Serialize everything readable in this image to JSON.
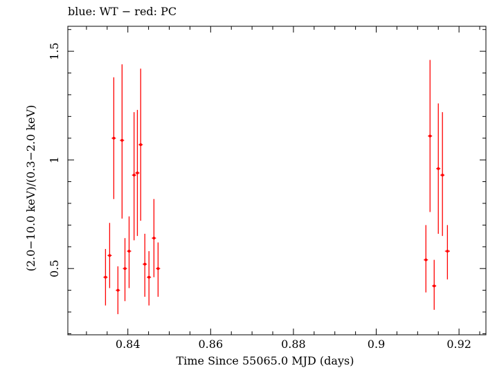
{
  "chart_data": {
    "type": "scatter",
    "title": "blue: WT − red: PC",
    "xlabel": "Time Since 55065.0 MJD (days)",
    "ylabel": "(2.0−10.0 keV)/(0.3−2.0 keV)",
    "xlim": [
      0.8255,
      0.9265
    ],
    "ylim": [
      0.195,
      1.615
    ],
    "xticks": [
      0.84,
      0.86,
      0.88,
      0.9,
      0.92
    ],
    "xtick_labels": [
      "0.84",
      "0.86",
      "0.88",
      "0.9",
      "0.92"
    ],
    "yticks": [
      0.5,
      1,
      1.5
    ],
    "ytick_labels": [
      "0.5",
      "1",
      "1.5"
    ],
    "grid": false,
    "series": [
      {
        "color": "#ff0000",
        "points": [
          {
            "x": 0.8346,
            "y": 0.46,
            "xerr": 0.0005,
            "ylo": 0.33,
            "yhi": 0.59
          },
          {
            "x": 0.8356,
            "y": 0.56,
            "xerr": 0.0005,
            "ylo": 0.41,
            "yhi": 0.71
          },
          {
            "x": 0.8366,
            "y": 1.1,
            "xerr": 0.0005,
            "ylo": 0.82,
            "yhi": 1.38
          },
          {
            "x": 0.8376,
            "y": 0.4,
            "xerr": 0.0005,
            "ylo": 0.29,
            "yhi": 0.51
          },
          {
            "x": 0.8386,
            "y": 1.09,
            "xerr": 0.0005,
            "ylo": 0.73,
            "yhi": 1.44
          },
          {
            "x": 0.8393,
            "y": 0.5,
            "xerr": 0.0005,
            "ylo": 0.35,
            "yhi": 0.64
          },
          {
            "x": 0.8403,
            "y": 0.58,
            "xerr": 0.0005,
            "ylo": 0.41,
            "yhi": 0.74
          },
          {
            "x": 0.8415,
            "y": 0.93,
            "xerr": 0.0005,
            "ylo": 0.63,
            "yhi": 1.22
          },
          {
            "x": 0.8423,
            "y": 0.94,
            "xerr": 0.0005,
            "ylo": 0.65,
            "yhi": 1.23
          },
          {
            "x": 0.8431,
            "y": 1.07,
            "xerr": 0.0005,
            "ylo": 0.72,
            "yhi": 1.42
          },
          {
            "x": 0.8441,
            "y": 0.52,
            "xerr": 0.0005,
            "ylo": 0.37,
            "yhi": 0.66
          },
          {
            "x": 0.8451,
            "y": 0.46,
            "xerr": 0.0005,
            "ylo": 0.33,
            "yhi": 0.58
          },
          {
            "x": 0.8463,
            "y": 0.64,
            "xerr": 0.0005,
            "ylo": 0.46,
            "yhi": 0.82
          },
          {
            "x": 0.8473,
            "y": 0.5,
            "xerr": 0.0005,
            "ylo": 0.37,
            "yhi": 0.62
          },
          {
            "x": 0.912,
            "y": 0.54,
            "xerr": 0.0005,
            "ylo": 0.39,
            "yhi": 0.7
          },
          {
            "x": 0.913,
            "y": 1.11,
            "xerr": 0.0005,
            "ylo": 0.76,
            "yhi": 1.46
          },
          {
            "x": 0.914,
            "y": 0.42,
            "xerr": 0.0005,
            "ylo": 0.31,
            "yhi": 0.54
          },
          {
            "x": 0.915,
            "y": 0.96,
            "xerr": 0.0005,
            "ylo": 0.66,
            "yhi": 1.26
          },
          {
            "x": 0.916,
            "y": 0.93,
            "xerr": 0.0005,
            "ylo": 0.65,
            "yhi": 1.22
          },
          {
            "x": 0.9172,
            "y": 0.58,
            "xerr": 0.0006,
            "ylo": 0.45,
            "yhi": 0.7
          }
        ]
      }
    ]
  }
}
